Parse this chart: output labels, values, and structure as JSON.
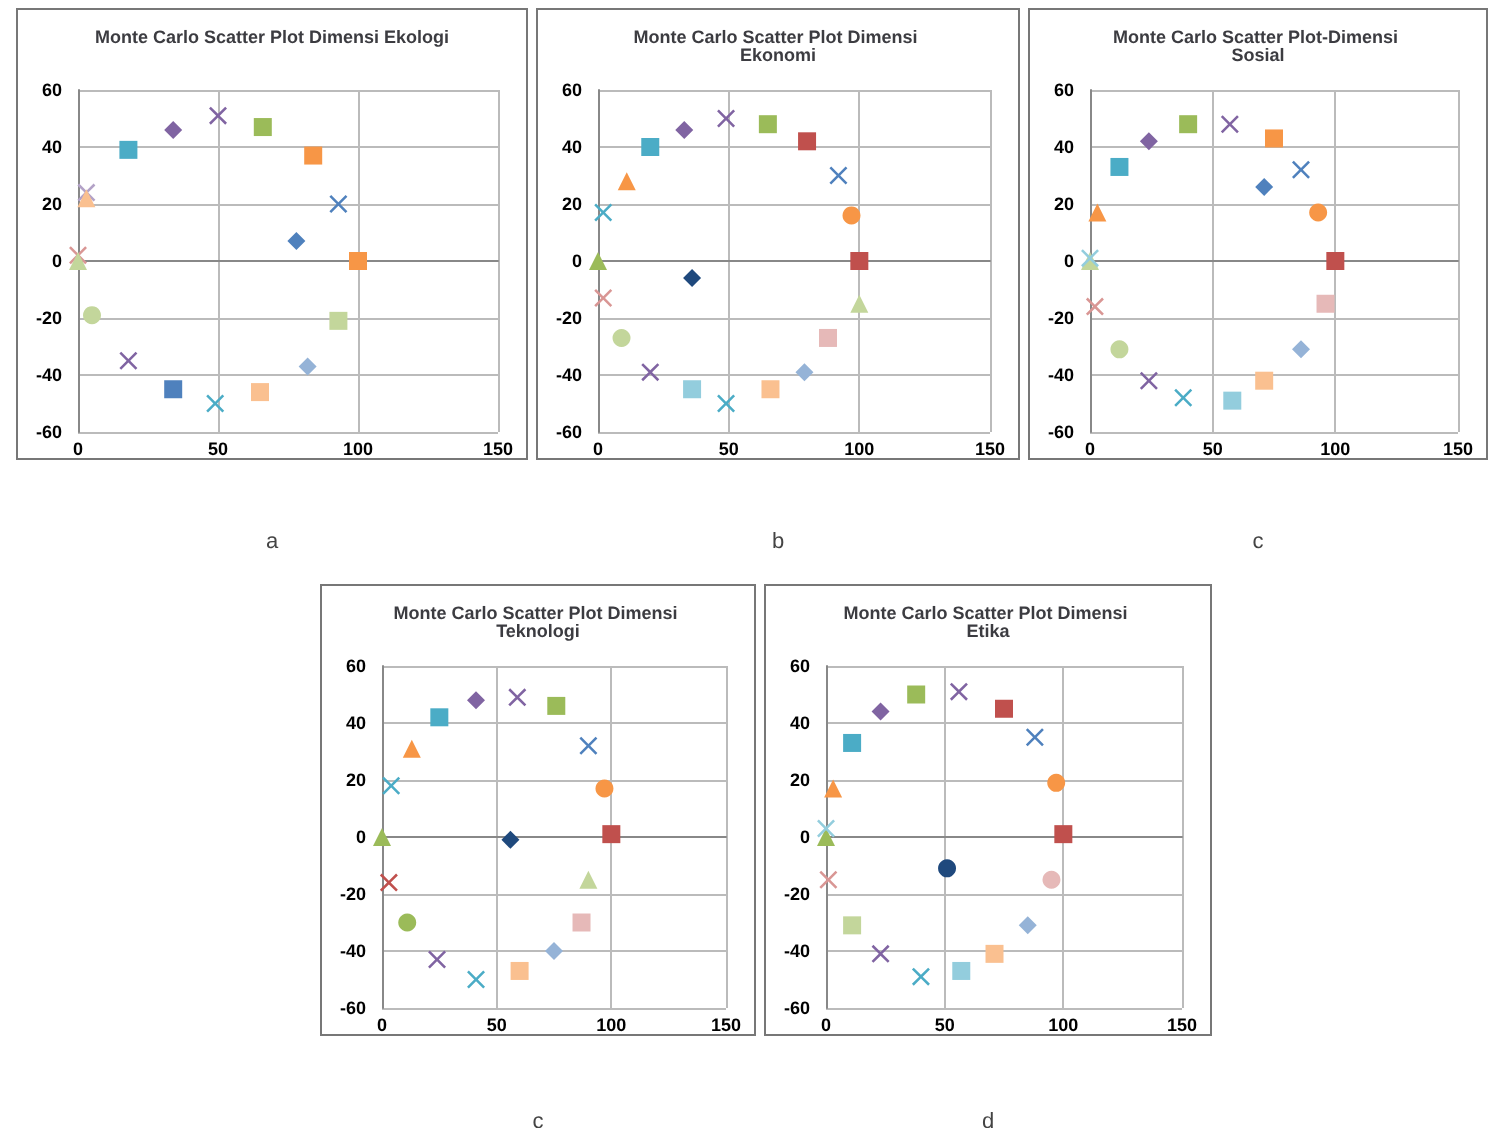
{
  "chart_data": [
    {
      "type": "scatter",
      "title": "Monte Carlo Scatter Plot Dimensi Ekologi",
      "annotations": [
        "a"
      ],
      "xlim": [
        0,
        150
      ],
      "xticks": [
        0,
        50,
        100,
        150
      ],
      "ylim": [
        -60,
        60
      ],
      "yticks": [
        -60,
        -40,
        -20,
        0,
        20,
        40,
        60
      ],
      "grid": true,
      "series": [
        {
          "x": [
            0
          ],
          "values": [
            2
          ],
          "color": "#d99694",
          "marker": "cross"
        },
        {
          "x": [
            0
          ],
          "values": [
            0
          ],
          "color": "#c3d69b",
          "marker": "triangle"
        },
        {
          "x": [
            3
          ],
          "values": [
            24
          ],
          "color": "#b3a2c7",
          "marker": "cross"
        },
        {
          "x": [
            3
          ],
          "values": [
            22
          ],
          "color": "#fac090",
          "marker": "triangle"
        },
        {
          "x": [
            18
          ],
          "values": [
            39
          ],
          "color": "#4bacc6",
          "marker": "square"
        },
        {
          "x": [
            34
          ],
          "values": [
            46
          ],
          "color": "#8064a2",
          "marker": "diamond"
        },
        {
          "x": [
            50
          ],
          "values": [
            51
          ],
          "color": "#8064a2",
          "marker": "cross"
        },
        {
          "x": [
            66
          ],
          "values": [
            47
          ],
          "color": "#9bbb59",
          "marker": "square"
        },
        {
          "x": [
            84
          ],
          "values": [
            37
          ],
          "color": "#f79646",
          "marker": "square"
        },
        {
          "x": [
            93
          ],
          "values": [
            20
          ],
          "color": "#4f81bd",
          "marker": "cross"
        },
        {
          "x": [
            78
          ],
          "values": [
            7
          ],
          "color": "#4f81bd",
          "marker": "diamond"
        },
        {
          "x": [
            100
          ],
          "values": [
            0
          ],
          "color": "#f79646",
          "marker": "square"
        },
        {
          "x": [
            5
          ],
          "values": [
            -19
          ],
          "color": "#c3d69b",
          "marker": "circle"
        },
        {
          "x": [
            93
          ],
          "values": [
            -21
          ],
          "color": "#c3d69b",
          "marker": "square"
        },
        {
          "x": [
            82
          ],
          "values": [
            -37
          ],
          "color": "#95b3d7",
          "marker": "diamond"
        },
        {
          "x": [
            18
          ],
          "values": [
            -35
          ],
          "color": "#8064a2",
          "marker": "cross"
        },
        {
          "x": [
            34
          ],
          "values": [
            -45
          ],
          "color": "#4f81bd",
          "marker": "square"
        },
        {
          "x": [
            49
          ],
          "values": [
            -50
          ],
          "color": "#4bacc6",
          "marker": "cross"
        },
        {
          "x": [
            65
          ],
          "values": [
            -46
          ],
          "color": "#fac090",
          "marker": "square"
        }
      ]
    },
    {
      "type": "scatter",
      "title": "Monte Carlo Scatter Plot Dimensi Ekonomi",
      "annotations": [
        "b"
      ],
      "xlim": [
        0,
        150
      ],
      "xticks": [
        0,
        50,
        100,
        150
      ],
      "ylim": [
        -60,
        60
      ],
      "yticks": [
        -60,
        -40,
        -20,
        0,
        20,
        40,
        60
      ],
      "grid": true,
      "series": [
        {
          "x": [
            0
          ],
          "values": [
            0
          ],
          "color": "#9bbb59",
          "marker": "triangle"
        },
        {
          "x": [
            2
          ],
          "values": [
            17
          ],
          "color": "#4bacc6",
          "marker": "cross"
        },
        {
          "x": [
            11
          ],
          "values": [
            28
          ],
          "color": "#f79646",
          "marker": "triangle"
        },
        {
          "x": [
            20
          ],
          "values": [
            40
          ],
          "color": "#4bacc6",
          "marker": "square"
        },
        {
          "x": [
            33
          ],
          "values": [
            46
          ],
          "color": "#8064a2",
          "marker": "diamond"
        },
        {
          "x": [
            49
          ],
          "values": [
            50
          ],
          "color": "#8064a2",
          "marker": "cross"
        },
        {
          "x": [
            65
          ],
          "values": [
            48
          ],
          "color": "#9bbb59",
          "marker": "square"
        },
        {
          "x": [
            80
          ],
          "values": [
            42
          ],
          "color": "#c0504d",
          "marker": "square"
        },
        {
          "x": [
            92
          ],
          "values": [
            30
          ],
          "color": "#4f81bd",
          "marker": "cross"
        },
        {
          "x": [
            97
          ],
          "values": [
            16
          ],
          "color": "#f79646",
          "marker": "circle"
        },
        {
          "x": [
            100
          ],
          "values": [
            0
          ],
          "color": "#c0504d",
          "marker": "square"
        },
        {
          "x": [
            36
          ],
          "values": [
            -6
          ],
          "color": "#1f497d",
          "marker": "diamond"
        },
        {
          "x": [
            2
          ],
          "values": [
            -13
          ],
          "color": "#d99694",
          "marker": "cross"
        },
        {
          "x": [
            9
          ],
          "values": [
            -27
          ],
          "color": "#c3d69b",
          "marker": "circle"
        },
        {
          "x": [
            20
          ],
          "values": [
            -39
          ],
          "color": "#8064a2",
          "marker": "cross"
        },
        {
          "x": [
            36
          ],
          "values": [
            -45
          ],
          "color": "#93cddd",
          "marker": "square"
        },
        {
          "x": [
            49
          ],
          "values": [
            -50
          ],
          "color": "#4bacc6",
          "marker": "cross"
        },
        {
          "x": [
            66
          ],
          "values": [
            -45
          ],
          "color": "#fac090",
          "marker": "square"
        },
        {
          "x": [
            79
          ],
          "values": [
            -39
          ],
          "color": "#95b3d7",
          "marker": "diamond"
        },
        {
          "x": [
            88
          ],
          "values": [
            -27
          ],
          "color": "#e6b9b8",
          "marker": "square"
        },
        {
          "x": [
            100
          ],
          "values": [
            -15
          ],
          "color": "#c3d69b",
          "marker": "triangle"
        }
      ]
    },
    {
      "type": "scatter",
      "title": "Monte Carlo Scatter Plot-Dimensi Sosial",
      "annotations": [
        "c"
      ],
      "xlim": [
        0,
        150
      ],
      "xticks": [
        0,
        50,
        100,
        150
      ],
      "ylim": [
        -60,
        60
      ],
      "yticks": [
        -60,
        -40,
        -20,
        0,
        20,
        40,
        60
      ],
      "grid": true,
      "series": [
        {
          "x": [
            0
          ],
          "values": [
            0
          ],
          "color": "#c3d69b",
          "marker": "triangle"
        },
        {
          "x": [
            0
          ],
          "values": [
            1
          ],
          "color": "#93cddd",
          "marker": "cross"
        },
        {
          "x": [
            3
          ],
          "values": [
            17
          ],
          "color": "#f79646",
          "marker": "triangle"
        },
        {
          "x": [
            12
          ],
          "values": [
            33
          ],
          "color": "#4bacc6",
          "marker": "square"
        },
        {
          "x": [
            24
          ],
          "values": [
            42
          ],
          "color": "#8064a2",
          "marker": "diamond"
        },
        {
          "x": [
            40
          ],
          "values": [
            48
          ],
          "color": "#9bbb59",
          "marker": "square"
        },
        {
          "x": [
            57
          ],
          "values": [
            48
          ],
          "color": "#8064a2",
          "marker": "cross"
        },
        {
          "x": [
            75
          ],
          "values": [
            43
          ],
          "color": "#f79646",
          "marker": "square"
        },
        {
          "x": [
            86
          ],
          "values": [
            32
          ],
          "color": "#4f81bd",
          "marker": "cross"
        },
        {
          "x": [
            71
          ],
          "values": [
            26
          ],
          "color": "#4f81bd",
          "marker": "diamond"
        },
        {
          "x": [
            93
          ],
          "values": [
            17
          ],
          "color": "#f79646",
          "marker": "circle"
        },
        {
          "x": [
            100
          ],
          "values": [
            0
          ],
          "color": "#c0504d",
          "marker": "square"
        },
        {
          "x": [
            2
          ],
          "values": [
            -16
          ],
          "color": "#d99694",
          "marker": "cross"
        },
        {
          "x": [
            96
          ],
          "values": [
            -15
          ],
          "color": "#e6b9b8",
          "marker": "square"
        },
        {
          "x": [
            12
          ],
          "values": [
            -31
          ],
          "color": "#c3d69b",
          "marker": "circle"
        },
        {
          "x": [
            24
          ],
          "values": [
            -42
          ],
          "color": "#8064a2",
          "marker": "cross"
        },
        {
          "x": [
            38
          ],
          "values": [
            -48
          ],
          "color": "#4bacc6",
          "marker": "cross"
        },
        {
          "x": [
            58
          ],
          "values": [
            -49
          ],
          "color": "#93cddd",
          "marker": "square"
        },
        {
          "x": [
            71
          ],
          "values": [
            -42
          ],
          "color": "#fac090",
          "marker": "square"
        },
        {
          "x": [
            86
          ],
          "values": [
            -31
          ],
          "color": "#95b3d7",
          "marker": "diamond"
        }
      ]
    },
    {
      "type": "scatter",
      "title": "Monte Carlo Scatter Plot Dimensi Teknologi",
      "annotations": [
        "c"
      ],
      "xlim": [
        0,
        150
      ],
      "xticks": [
        0,
        50,
        100,
        150
      ],
      "ylim": [
        -60,
        60
      ],
      "yticks": [
        -60,
        -40,
        -20,
        0,
        20,
        40,
        60
      ],
      "grid": true,
      "series": [
        {
          "x": [
            0
          ],
          "values": [
            0
          ],
          "color": "#9bbb59",
          "marker": "triangle"
        },
        {
          "x": [
            4
          ],
          "values": [
            18
          ],
          "color": "#4bacc6",
          "marker": "cross"
        },
        {
          "x": [
            13
          ],
          "values": [
            31
          ],
          "color": "#f79646",
          "marker": "triangle"
        },
        {
          "x": [
            25
          ],
          "values": [
            42
          ],
          "color": "#4bacc6",
          "marker": "square"
        },
        {
          "x": [
            41
          ],
          "values": [
            48
          ],
          "color": "#8064a2",
          "marker": "diamond"
        },
        {
          "x": [
            59
          ],
          "values": [
            49
          ],
          "color": "#8064a2",
          "marker": "cross"
        },
        {
          "x": [
            76
          ],
          "values": [
            46
          ],
          "color": "#9bbb59",
          "marker": "square"
        },
        {
          "x": [
            90
          ],
          "values": [
            32
          ],
          "color": "#4f81bd",
          "marker": "cross"
        },
        {
          "x": [
            97
          ],
          "values": [
            17
          ],
          "color": "#f79646",
          "marker": "circle"
        },
        {
          "x": [
            100
          ],
          "values": [
            1
          ],
          "color": "#c0504d",
          "marker": "square"
        },
        {
          "x": [
            56
          ],
          "values": [
            -1
          ],
          "color": "#1f497d",
          "marker": "diamond"
        },
        {
          "x": [
            3
          ],
          "values": [
            -16
          ],
          "color": "#c0504d",
          "marker": "cross"
        },
        {
          "x": [
            90
          ],
          "values": [
            -15
          ],
          "color": "#c3d69b",
          "marker": "triangle"
        },
        {
          "x": [
            11
          ],
          "values": [
            -30
          ],
          "color": "#9bbb59",
          "marker": "circle"
        },
        {
          "x": [
            24
          ],
          "values": [
            -43
          ],
          "color": "#8064a2",
          "marker": "cross"
        },
        {
          "x": [
            41
          ],
          "values": [
            -50
          ],
          "color": "#4bacc6",
          "marker": "cross"
        },
        {
          "x": [
            60
          ],
          "values": [
            -47
          ],
          "color": "#fac090",
          "marker": "square"
        },
        {
          "x": [
            75
          ],
          "values": [
            -40
          ],
          "color": "#95b3d7",
          "marker": "diamond"
        },
        {
          "x": [
            87
          ],
          "values": [
            -30
          ],
          "color": "#e6b9b8",
          "marker": "square"
        }
      ]
    },
    {
      "type": "scatter",
      "title": "Monte Carlo Scatter Plot Dimensi Etika",
      "annotations": [
        "d"
      ],
      "xlim": [
        0,
        150
      ],
      "xticks": [
        0,
        50,
        100,
        150
      ],
      "ylim": [
        -60,
        60
      ],
      "yticks": [
        -60,
        -40,
        -20,
        0,
        20,
        40,
        60
      ],
      "grid": true,
      "series": [
        {
          "x": [
            0
          ],
          "values": [
            0
          ],
          "color": "#9bbb59",
          "marker": "triangle"
        },
        {
          "x": [
            0
          ],
          "values": [
            3
          ],
          "color": "#93cddd",
          "marker": "cross"
        },
        {
          "x": [
            3
          ],
          "values": [
            17
          ],
          "color": "#f79646",
          "marker": "triangle"
        },
        {
          "x": [
            11
          ],
          "values": [
            33
          ],
          "color": "#4bacc6",
          "marker": "square"
        },
        {
          "x": [
            23
          ],
          "values": [
            44
          ],
          "color": "#8064a2",
          "marker": "diamond"
        },
        {
          "x": [
            38
          ],
          "values": [
            50
          ],
          "color": "#9bbb59",
          "marker": "square"
        },
        {
          "x": [
            56
          ],
          "values": [
            51
          ],
          "color": "#8064a2",
          "marker": "cross"
        },
        {
          "x": [
            75
          ],
          "values": [
            45
          ],
          "color": "#c0504d",
          "marker": "square"
        },
        {
          "x": [
            88
          ],
          "values": [
            35
          ],
          "color": "#4f81bd",
          "marker": "cross"
        },
        {
          "x": [
            97
          ],
          "values": [
            19
          ],
          "color": "#f79646",
          "marker": "circle"
        },
        {
          "x": [
            100
          ],
          "values": [
            1
          ],
          "color": "#c0504d",
          "marker": "square"
        },
        {
          "x": [
            51
          ],
          "values": [
            -11
          ],
          "color": "#1f497d",
          "marker": "circle"
        },
        {
          "x": [
            1
          ],
          "values": [
            -15
          ],
          "color": "#d99694",
          "marker": "cross"
        },
        {
          "x": [
            95
          ],
          "values": [
            -15
          ],
          "color": "#e6b9b8",
          "marker": "circle"
        },
        {
          "x": [
            11
          ],
          "values": [
            -31
          ],
          "color": "#c3d69b",
          "marker": "square"
        },
        {
          "x": [
            23
          ],
          "values": [
            -41
          ],
          "color": "#8064a2",
          "marker": "cross"
        },
        {
          "x": [
            40
          ],
          "values": [
            -49
          ],
          "color": "#4bacc6",
          "marker": "cross"
        },
        {
          "x": [
            57
          ],
          "values": [
            -47
          ],
          "color": "#93cddd",
          "marker": "square"
        },
        {
          "x": [
            71
          ],
          "values": [
            -41
          ],
          "color": "#fac090",
          "marker": "square"
        },
        {
          "x": [
            85
          ],
          "values": [
            -31
          ],
          "color": "#95b3d7",
          "marker": "diamond"
        }
      ]
    }
  ]
}
